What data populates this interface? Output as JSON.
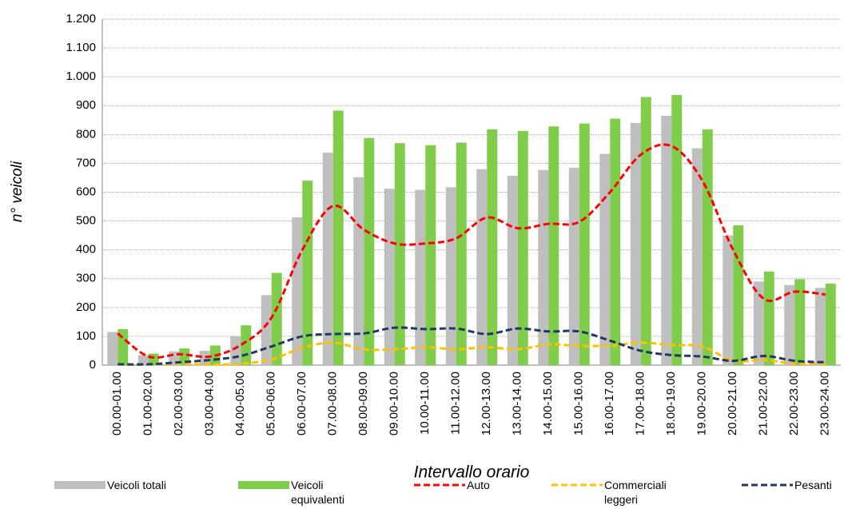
{
  "chart_data": {
    "type": "bar_line",
    "y_label": "n° veicoli",
    "x_label": "Intervallo orario",
    "categories": [
      "00.00-01.00",
      "01.00-02.00",
      "02.00-03.00",
      "03.00-04.00",
      "04.00-05.00",
      "05.00-06.00",
      "06.00-07.00",
      "07.00-08.00",
      "08.00-09.00",
      "09.00-10.00",
      "10.00-11.00",
      "11.00-12.00",
      "12.00-13.00",
      "13.00-14.00",
      "14.00-15.00",
      "15.00-16.00",
      "16.00-17.00",
      "17.00-18.00",
      "18.00-19.00",
      "19.00-20.00",
      "20.00-21.00",
      "21.00-22.00",
      "22.00-23.00",
      "23.00-24.00"
    ],
    "series": [
      {
        "name": "Veicoli totali",
        "kind": "bar",
        "color": "#bfbfbf",
        "values": [
          115,
          35,
          48,
          50,
          100,
          243,
          513,
          737,
          652,
          612,
          608,
          617,
          680,
          657,
          677,
          685,
          733,
          840,
          865,
          752,
          450,
          290,
          278,
          268
        ]
      },
      {
        "name": "Veicoli equivalenti",
        "kind": "bar",
        "color": "#7fcd4b",
        "values": [
          125,
          40,
          58,
          68,
          138,
          320,
          640,
          883,
          788,
          770,
          763,
          772,
          818,
          812,
          828,
          838,
          855,
          930,
          937,
          818,
          485,
          325,
          298,
          283
        ]
      },
      {
        "name": "Auto",
        "kind": "line",
        "color": "#ff0000",
        "values": [
          110,
          30,
          38,
          30,
          70,
          165,
          400,
          552,
          470,
          422,
          422,
          440,
          512,
          475,
          490,
          497,
          600,
          730,
          760,
          640,
          400,
          230,
          255,
          245
        ]
      },
      {
        "name": "Commerciali leggeri",
        "kind": "line",
        "color": "#ffc000",
        "values": [
          2,
          2,
          5,
          2,
          5,
          20,
          60,
          78,
          55,
          55,
          62,
          55,
          62,
          55,
          72,
          67,
          68,
          78,
          70,
          65,
          15,
          18,
          5,
          5
        ]
      },
      {
        "name": "Pesanti",
        "kind": "line",
        "color": "#1f3864",
        "values": [
          3,
          3,
          10,
          18,
          32,
          65,
          100,
          108,
          110,
          130,
          125,
          127,
          108,
          127,
          117,
          117,
          85,
          50,
          35,
          30,
          15,
          32,
          15,
          10
        ]
      }
    ],
    "ylim": [
      0,
      1200
    ],
    "yticks": [
      0,
      100,
      200,
      300,
      400,
      500,
      600,
      700,
      800,
      900,
      {
        "value": 1000,
        "label": "1.000"
      },
      {
        "value": 1100,
        "label": "1.100"
      },
      {
        "value": 1200,
        "label": "1.200"
      }
    ],
    "grid": true
  }
}
